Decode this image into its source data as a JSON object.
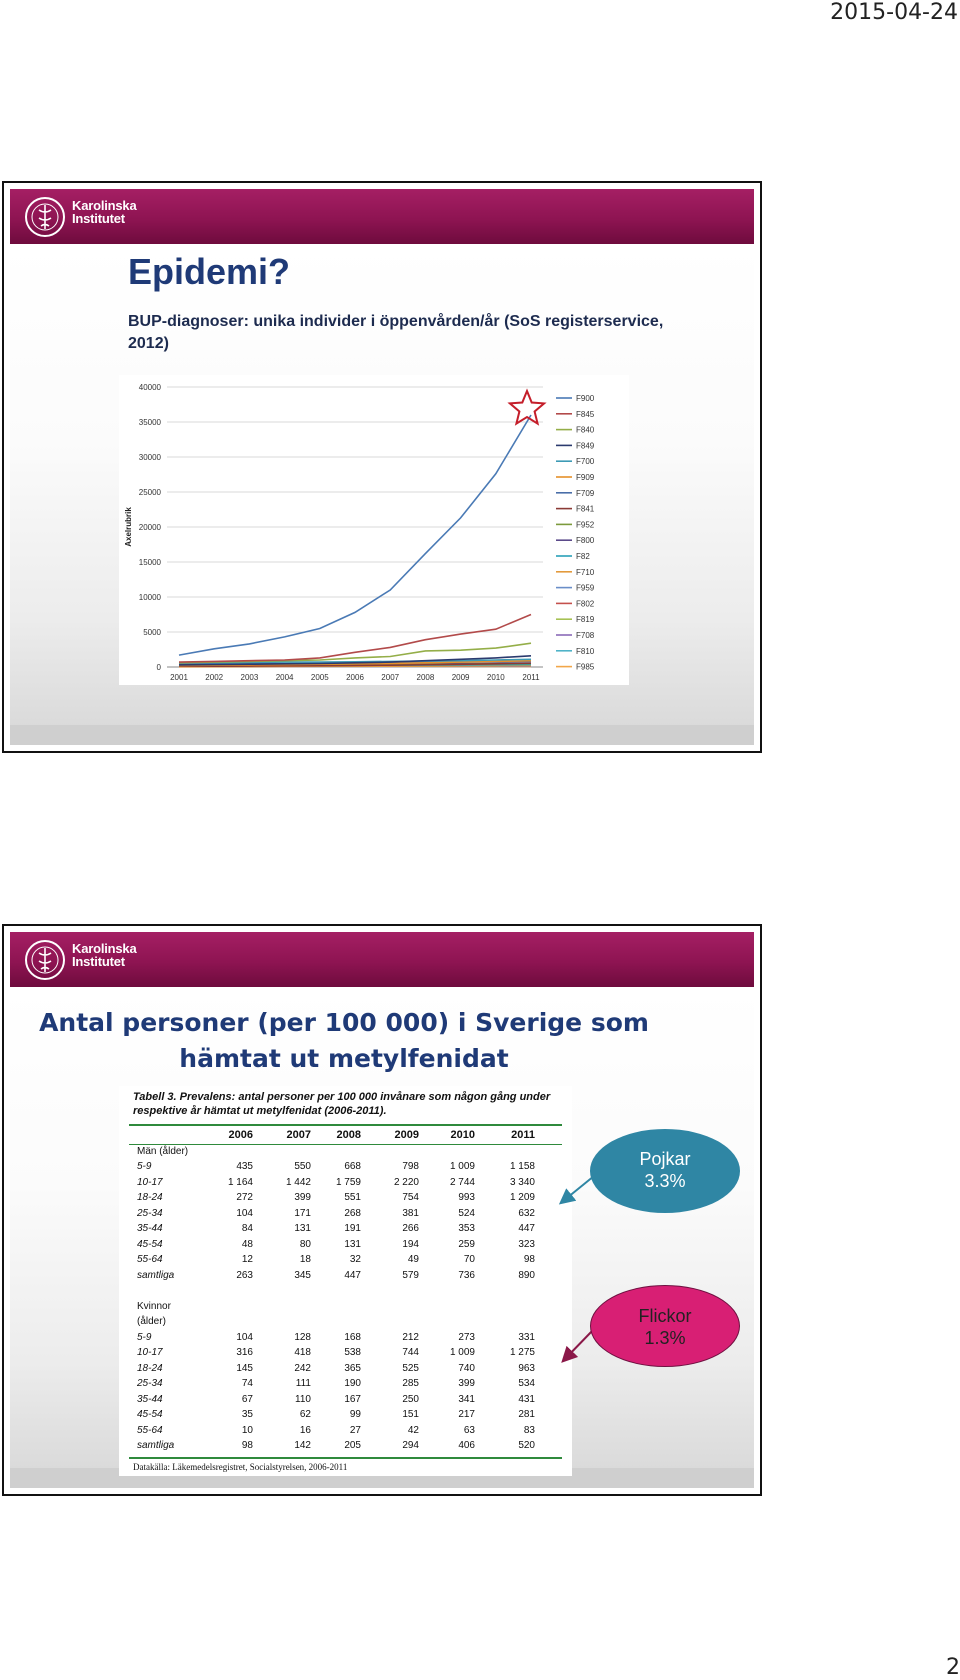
{
  "page": {
    "date": "2015-04-24",
    "page_number": "2"
  },
  "logo": {
    "line1": "Karolinska",
    "line2": "Institutet"
  },
  "slide1": {
    "title": "Epidemi?",
    "subtitle": "BUP-diagnoser: unika individer i öppenvården/år (SoS registerservice, 2012)",
    "chart_data": {
      "type": "line",
      "ylabel": "Axelrubrik",
      "xlabel": "",
      "ylim": [
        0,
        40000
      ],
      "yticks": [
        "0",
        "5000",
        "10000",
        "15000",
        "20000",
        "25000",
        "30000",
        "35000",
        "40000"
      ],
      "categories": [
        "2001",
        "2002",
        "2003",
        "2004",
        "2005",
        "2006",
        "2007",
        "2008",
        "2009",
        "2010",
        "2011"
      ],
      "grid": true,
      "legend_position": "right",
      "annotation": "star-marker at 2011 peak",
      "series": [
        {
          "name": "F900",
          "color": "#4a7ab5",
          "values": [
            1700,
            2600,
            3300,
            4300,
            5500,
            7800,
            11000,
            16200,
            21300,
            27600,
            36000
          ]
        },
        {
          "name": "F845",
          "color": "#b24a4a",
          "values": [
            700,
            800,
            900,
            1000,
            1300,
            2100,
            2800,
            3900,
            4700,
            5400,
            7500
          ]
        },
        {
          "name": "F840",
          "color": "#94ae48",
          "values": [
            600,
            700,
            800,
            900,
            1000,
            1300,
            1500,
            2300,
            2400,
            2700,
            3400
          ]
        },
        {
          "name": "F849",
          "color": "#2b3a6e",
          "values": [
            300,
            350,
            400,
            450,
            500,
            600,
            700,
            900,
            1100,
            1300,
            1600
          ]
        },
        {
          "name": "F700",
          "color": "#3d9ab5",
          "values": [
            600,
            600,
            650,
            700,
            700,
            750,
            800,
            850,
            900,
            1000,
            1100
          ]
        },
        {
          "name": "F909",
          "color": "#e5902a",
          "values": [
            200,
            250,
            300,
            350,
            400,
            450,
            500,
            600,
            700,
            800,
            900
          ]
        },
        {
          "name": "F709",
          "color": "#4a6ea8",
          "values": [
            400,
            420,
            450,
            480,
            500,
            550,
            600,
            650,
            700,
            750,
            800
          ]
        },
        {
          "name": "F841",
          "color": "#8b3a36",
          "values": [
            100,
            120,
            140,
            160,
            180,
            220,
            260,
            320,
            380,
            450,
            550
          ]
        },
        {
          "name": "F952",
          "color": "#7c9a3c",
          "values": [
            150,
            170,
            190,
            210,
            230,
            260,
            300,
            350,
            400,
            450,
            500
          ]
        },
        {
          "name": "F800",
          "color": "#5b4a8a",
          "values": [
            300,
            320,
            340,
            360,
            380,
            400,
            420,
            450,
            480,
            510,
            540
          ]
        },
        {
          "name": "F82",
          "color": "#2aa0b8",
          "values": [
            200,
            210,
            220,
            230,
            240,
            250,
            260,
            280,
            300,
            320,
            340
          ]
        },
        {
          "name": "F710",
          "color": "#e39a3c",
          "values": [
            50,
            60,
            70,
            80,
            90,
            100,
            110,
            130,
            150,
            170,
            190
          ]
        },
        {
          "name": "F959",
          "color": "#6a8ec8",
          "values": [
            100,
            110,
            120,
            130,
            140,
            150,
            170,
            190,
            210,
            230,
            260
          ]
        },
        {
          "name": "F802",
          "color": "#c4504c",
          "values": [
            150,
            160,
            170,
            180,
            190,
            200,
            210,
            220,
            240,
            260,
            280
          ]
        },
        {
          "name": "F819",
          "color": "#a6c254",
          "values": [
            80,
            90,
            100,
            110,
            120,
            130,
            140,
            160,
            180,
            200,
            220
          ]
        },
        {
          "name": "F708",
          "color": "#8a6bb8",
          "values": [
            50,
            55,
            60,
            65,
            70,
            75,
            80,
            90,
            100,
            110,
            120
          ]
        },
        {
          "name": "F810",
          "color": "#4fb3c8",
          "values": [
            40,
            45,
            50,
            55,
            60,
            65,
            70,
            80,
            90,
            100,
            110
          ]
        },
        {
          "name": "F985",
          "color": "#f2a64a",
          "values": [
            20,
            25,
            30,
            35,
            40,
            45,
            50,
            55,
            60,
            70,
            80
          ]
        }
      ]
    }
  },
  "slide2": {
    "title_line1": "Antal personer (per 100 000) i Sverige som",
    "title_line2": "hämtat ut metylfenidat",
    "table": {
      "caption": "Tabell 3. Prevalens: antal personer per 100 000 invånare som någon gång under respektive år hämtat ut metylfenidat (2006-2011).",
      "years": [
        "2006",
        "2007",
        "2008",
        "2009",
        "2010",
        "2011"
      ],
      "men_header": "Män (ålder)",
      "men_rows": [
        {
          "label": "5-9",
          "values": [
            "435",
            "550",
            "668",
            "798",
            "1 009",
            "1 158"
          ]
        },
        {
          "label": "10-17",
          "values": [
            "1 164",
            "1 442",
            "1 759",
            "2 220",
            "2 744",
            "3 340"
          ]
        },
        {
          "label": "18-24",
          "values": [
            "272",
            "399",
            "551",
            "754",
            "993",
            "1 209"
          ]
        },
        {
          "label": "25-34",
          "values": [
            "104",
            "171",
            "268",
            "381",
            "524",
            "632"
          ]
        },
        {
          "label": "35-44",
          "values": [
            "84",
            "131",
            "191",
            "266",
            "353",
            "447"
          ]
        },
        {
          "label": "45-54",
          "values": [
            "48",
            "80",
            "131",
            "194",
            "259",
            "323"
          ]
        },
        {
          "label": "55-64",
          "values": [
            "12",
            "18",
            "32",
            "49",
            "70",
            "98"
          ]
        },
        {
          "label": "samtliga",
          "values": [
            "263",
            "345",
            "447",
            "579",
            "736",
            "890"
          ]
        }
      ],
      "women_header_1": "Kvinnor",
      "women_header_2": "(ålder)",
      "women_rows": [
        {
          "label": "5-9",
          "values": [
            "104",
            "128",
            "168",
            "212",
            "273",
            "331"
          ]
        },
        {
          "label": "10-17",
          "values": [
            "316",
            "418",
            "538",
            "744",
            "1 009",
            "1 275"
          ]
        },
        {
          "label": "18-24",
          "values": [
            "145",
            "242",
            "365",
            "525",
            "740",
            "963"
          ]
        },
        {
          "label": "25-34",
          "values": [
            "74",
            "111",
            "190",
            "285",
            "399",
            "534"
          ]
        },
        {
          "label": "35-44",
          "values": [
            "67",
            "110",
            "167",
            "250",
            "341",
            "431"
          ]
        },
        {
          "label": "45-54",
          "values": [
            "35",
            "62",
            "99",
            "151",
            "217",
            "281"
          ]
        },
        {
          "label": "55-64",
          "values": [
            "10",
            "16",
            "27",
            "42",
            "63",
            "83"
          ]
        },
        {
          "label": "samtliga",
          "values": [
            "98",
            "142",
            "205",
            "294",
            "406",
            "520"
          ]
        }
      ],
      "source": "Datakälla: Läkemedelsregistret, Socialstyrelsen, 2006-2011"
    },
    "callouts": {
      "boys_label": "Pojkar",
      "boys_value": "3.3%",
      "girls_label": "Flickor",
      "girls_value": "1.3%"
    }
  }
}
